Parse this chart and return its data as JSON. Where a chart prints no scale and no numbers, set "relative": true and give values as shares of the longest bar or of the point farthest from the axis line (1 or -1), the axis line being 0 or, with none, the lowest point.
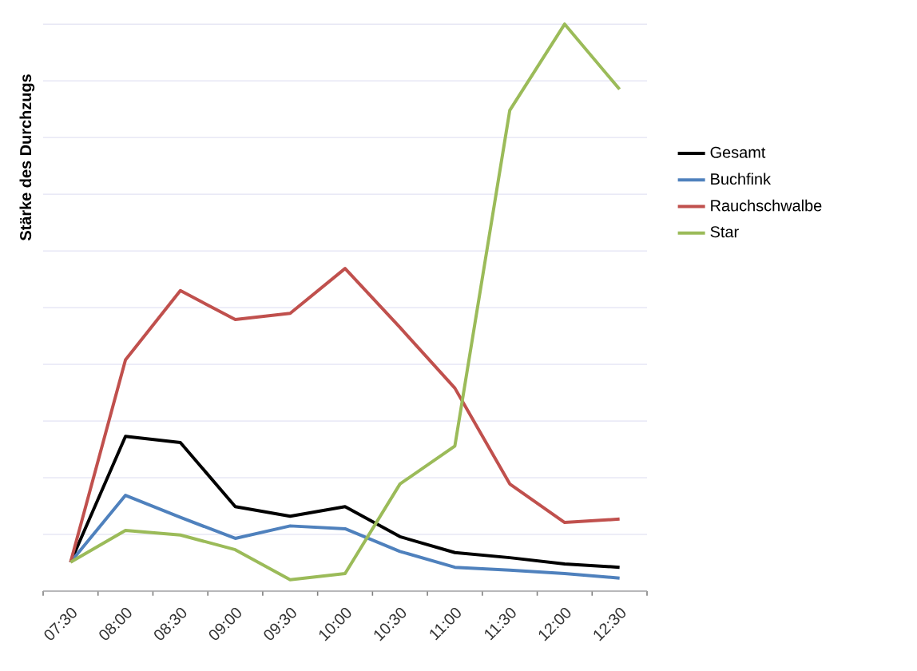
{
  "chart_data": {
    "type": "line",
    "ylabel": "Stärke des Durchzugs",
    "relative": true,
    "grid": "y",
    "legend": "right",
    "marker": "none",
    "line_style": "solid",
    "categories": [
      "07:30",
      "08:00",
      "08:30",
      "09:00",
      "09:30",
      "10:00",
      "10:30",
      "11:00",
      "11:30",
      "12:00",
      "12:30"
    ],
    "series": [
      {
        "name": "Gesamt",
        "color": "#000000",
        "values": [
          0.051,
          0.273,
          0.262,
          0.149,
          0.132,
          0.149,
          0.096,
          0.068,
          0.059,
          0.048,
          0.042
        ]
      },
      {
        "name": "Buchfink",
        "color": "#4f81bd",
        "values": [
          0.051,
          0.169,
          0.13,
          0.093,
          0.115,
          0.11,
          0.07,
          0.042,
          0.037,
          0.031,
          0.023
        ]
      },
      {
        "name": "Rauchschwalbe",
        "color": "#c0504d",
        "values": [
          0.051,
          0.408,
          0.53,
          0.479,
          0.49,
          0.569,
          0.465,
          0.358,
          0.189,
          0.121,
          0.127
        ]
      },
      {
        "name": "Star",
        "color": "#9bbb59",
        "values": [
          0.051,
          0.107,
          0.099,
          0.073,
          0.02,
          0.031,
          0.189,
          0.256,
          0.848,
          1,
          0.885
        ]
      }
    ]
  }
}
